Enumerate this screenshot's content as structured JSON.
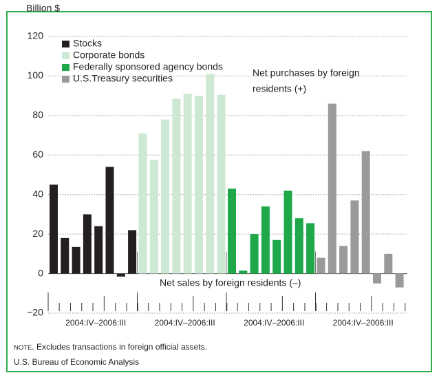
{
  "chart_data": {
    "type": "bar",
    "y_label": "Billion $",
    "categories": [
      null,
      null,
      null,
      null,
      null,
      null,
      null,
      null
    ],
    "group_labels": [
      "2004:IV–2006:III",
      "2004:IV–2006:III",
      "2004:IV–2006:III",
      "2004:IV–2006:III"
    ],
    "series": [
      {
        "name": "Stocks",
        "color": "#231f20",
        "values": [
          45,
          18,
          13.5,
          30,
          24,
          54,
          -1.5,
          22
        ]
      },
      {
        "name": "Corporate bonds",
        "color": "#cde8d3",
        "values": [
          71,
          57.5,
          78,
          88.5,
          91,
          90,
          101,
          90.5
        ]
      },
      {
        "name": "Federally sponsored agency bonds",
        "color": "#1ea84a",
        "values": [
          43,
          1.5,
          20,
          34,
          17,
          42,
          28,
          25.5
        ]
      },
      {
        "name": "U.S.Treasury securities",
        "color": "#9a9a9b",
        "values": [
          8,
          86,
          14,
          37,
          62,
          -5,
          10,
          -7
        ]
      }
    ],
    "ylim": [
      -20,
      120
    ],
    "yticks": [
      {
        "value": -20,
        "label": "−20"
      },
      0,
      20,
      40,
      60,
      80,
      100,
      120
    ],
    "grid": true,
    "legend": "top-left",
    "annotations": [
      "Net purchases by foreign",
      "residents (+)",
      "Net sales by foreign residents (–)"
    ],
    "note_prefix": "Note",
    "note": ". Excludes transactions in foreign official assets.",
    "source": "U.S. Bureau of Economic Analysis"
  }
}
